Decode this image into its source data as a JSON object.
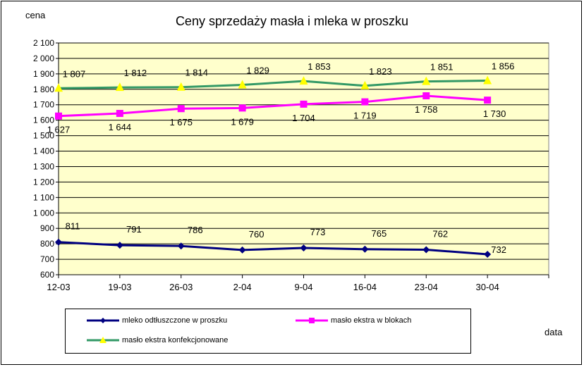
{
  "chart_data": {
    "type": "line",
    "title": "Ceny sprzedaży masła i mleka w proszku",
    "ylabel": "cena",
    "xlabel": "data",
    "categories": [
      "12-03",
      "19-03",
      "26-03",
      "2-04",
      "9-04",
      "16-04",
      "23-04",
      "30-04"
    ],
    "ylim": [
      600,
      2100
    ],
    "yticks": [
      600,
      700,
      800,
      900,
      1000,
      1100,
      1200,
      1300,
      1400,
      1500,
      1600,
      1700,
      1800,
      1900,
      2000,
      2100
    ],
    "ytick_labels": [
      "600",
      "700",
      "800",
      "900",
      "1 000",
      "1 100",
      "1 200",
      "1 300",
      "1 400",
      "1 500",
      "1 600",
      "1 700",
      "1 800",
      "1 900",
      "2 000",
      "2 100"
    ],
    "grid": true,
    "legend_position": "bottom",
    "series": [
      {
        "name": "mleko odtłuszczone w proszku",
        "values": [
          811,
          791,
          786,
          760,
          773,
          765,
          762,
          732
        ],
        "labels": [
          "811",
          "791",
          "786",
          "760",
          "773",
          "765",
          "762",
          "732"
        ],
        "color": "#000080",
        "marker": "diamond"
      },
      {
        "name": "masło ekstra w blokach",
        "values": [
          1627,
          1644,
          1675,
          1679,
          1704,
          1719,
          1758,
          1730
        ],
        "labels": [
          "1 627",
          "1 644",
          "1 675",
          "1 679",
          "1 704",
          "1 719",
          "1 758",
          "1 730"
        ],
        "color": "#FF00FF",
        "marker": "square"
      },
      {
        "name": "masło ekstra konfekcjonowane",
        "values": [
          1807,
          1812,
          1814,
          1829,
          1853,
          1823,
          1851,
          1856
        ],
        "labels": [
          "1 807",
          "1 812",
          "1 814",
          "1 829",
          "1 853",
          "1 823",
          "1 851",
          "1 856"
        ],
        "color": "#339966",
        "marker": "triangle",
        "marker_color": "#FFFF00"
      }
    ],
    "plot_background": "#FFFFCC"
  }
}
